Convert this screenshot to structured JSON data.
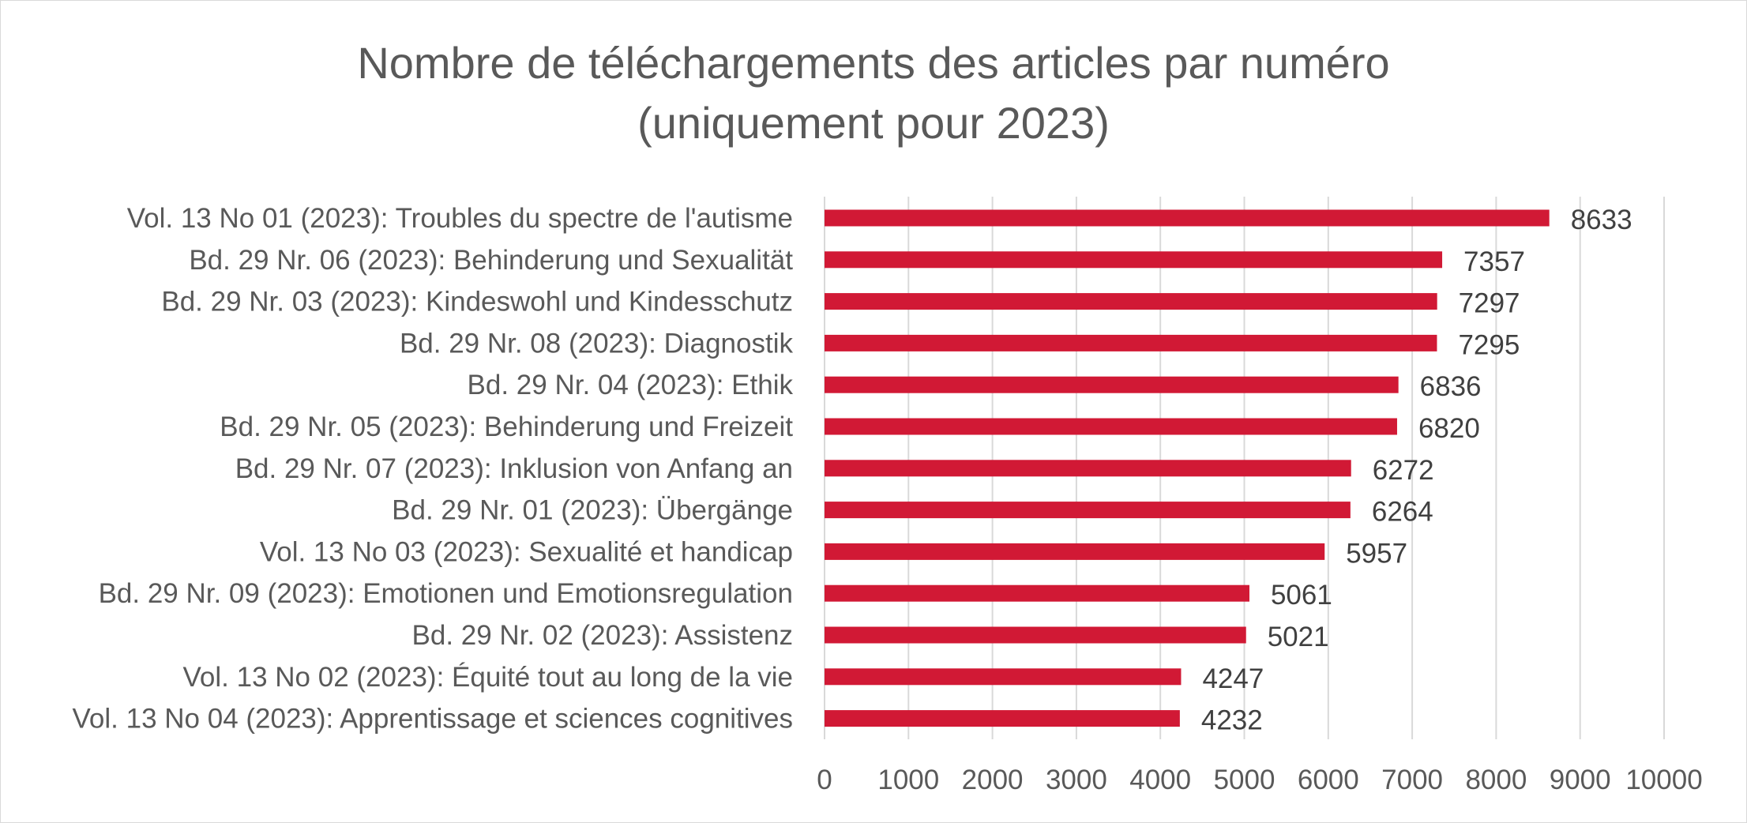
{
  "chart_data": {
    "type": "bar",
    "orientation": "horizontal",
    "title": "Nombre de téléchargements des articles par numéro (uniquement pour 2023)",
    "title_lines": [
      "Nombre de téléchargements des articles par numéro",
      "(uniquement pour 2023)"
    ],
    "xlabel": "",
    "ylabel": "",
    "xlim": [
      0,
      10000
    ],
    "x_ticks": [
      0,
      1000,
      2000,
      3000,
      4000,
      5000,
      6000,
      7000,
      8000,
      9000,
      10000
    ],
    "grid": true,
    "legend": "none",
    "bar_color": "#d11935",
    "categories": [
      "Vol. 13 No 01 (2023): Troubles du spectre de l'autisme",
      "Bd. 29 Nr. 06 (2023): Behinderung und Sexualität",
      "Bd. 29 Nr. 03 (2023): Kindeswohl und Kindesschutz",
      "Bd. 29 Nr. 08 (2023): Diagnostik",
      "Bd. 29 Nr. 04 (2023): Ethik",
      "Bd. 29 Nr. 05 (2023): Behinderung und Freizeit",
      "Bd. 29 Nr. 07 (2023): Inklusion von Anfang an",
      "Bd. 29 Nr. 01 (2023): Übergänge",
      "Vol. 13 No 03 (2023): Sexualité et handicap",
      "Bd. 29 Nr. 09 (2023): Emotionen und Emotionsregulation",
      "Bd. 29 Nr. 02 (2023): Assistenz",
      "Vol. 13 No 02 (2023): Équité tout au long de la vie",
      "Vol. 13 No 04 (2023): Apprentissage et sciences cognitives"
    ],
    "values": [
      8633,
      7357,
      7297,
      7295,
      6836,
      6820,
      6272,
      6264,
      5957,
      5061,
      5021,
      4247,
      4232
    ]
  }
}
